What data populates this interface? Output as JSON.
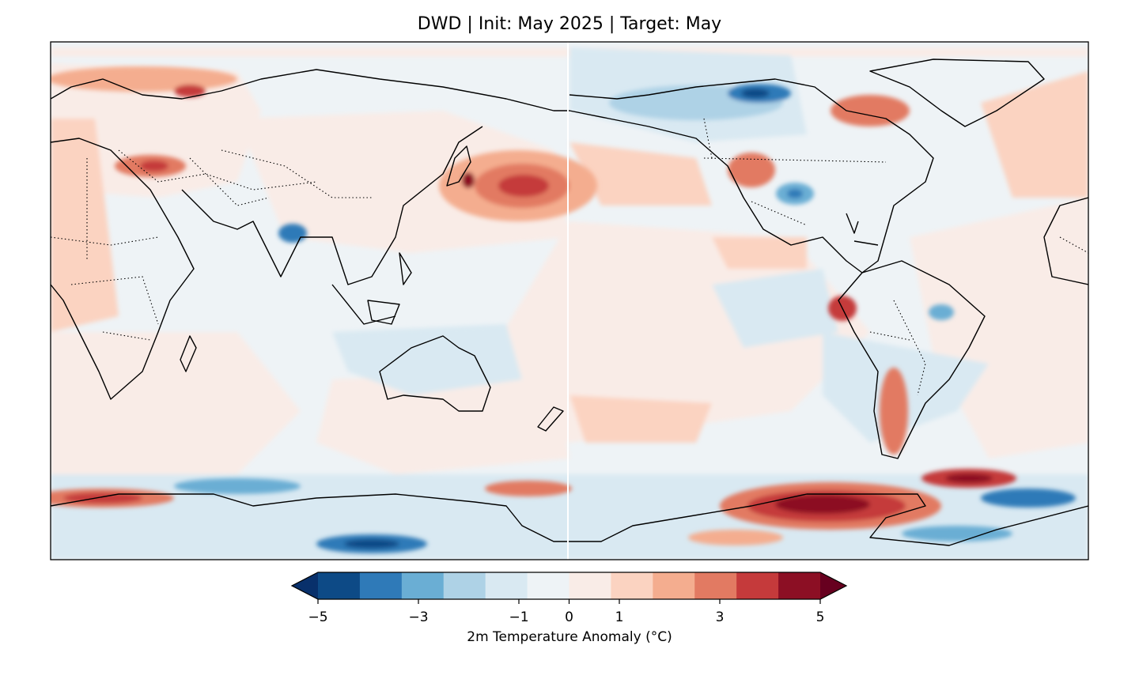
{
  "title": "DWD | Init: May 2025 | Target: May",
  "colorbar": {
    "label": "2m Temperature Anomaly (°C)",
    "min": -5,
    "max": 5,
    "step": 1,
    "extend": "both",
    "tick_values": [
      -5,
      -3,
      -1,
      0,
      1,
      3,
      5
    ],
    "tick_labels": [
      "−5",
      "−3",
      "−1",
      "0",
      "1",
      "3",
      "5"
    ],
    "colors": [
      "#0d4a86",
      "#2f7ab8",
      "#6aaed4",
      "#aed2e6",
      "#d9e9f2",
      "#eef3f6",
      "#f9ece7",
      "#fbd3c1",
      "#f4ad8f",
      "#e27a62",
      "#c53a3b",
      "#8c0f24"
    ],
    "under_color": "#08306b",
    "over_color": "#67001f"
  },
  "map": {
    "projection": "PlateCarree",
    "central_longitude": 180,
    "features": [
      "coastlines",
      "country borders"
    ]
  }
}
